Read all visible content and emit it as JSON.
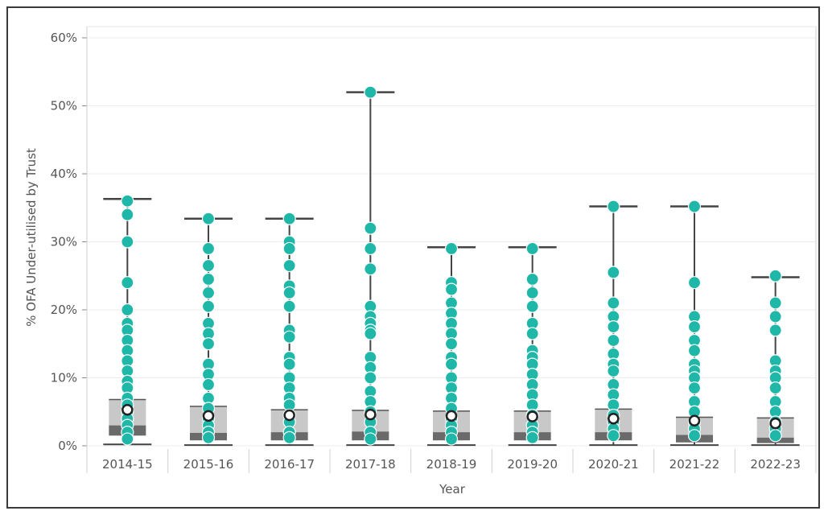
{
  "chart_data": {
    "type": "box",
    "xlabel": "Year",
    "ylabel": "% OFA Under-utilised by Trust",
    "ylim": [
      0,
      60
    ],
    "y_unit": "%",
    "y_ticks": [
      0,
      10,
      20,
      30,
      40,
      50,
      60
    ],
    "y_tick_labels": [
      "0%",
      "10%",
      "20%",
      "30%",
      "40%",
      "50%",
      "60%"
    ],
    "grid": true,
    "categories": [
      "2014-15",
      "2015-16",
      "2016-17",
      "2017-18",
      "2018-19",
      "2019-20",
      "2020-21",
      "2021-22",
      "2022-23"
    ],
    "boxes": [
      {
        "min": 0.2,
        "q1": 1.5,
        "median": 3.0,
        "q3": 6.8,
        "max": 36.3,
        "mean": 5.3
      },
      {
        "min": 0.1,
        "q1": 0.8,
        "median": 1.9,
        "q3": 5.8,
        "max": 33.4,
        "mean": 4.4
      },
      {
        "min": 0.1,
        "q1": 0.8,
        "median": 2.0,
        "q3": 5.3,
        "max": 33.4,
        "mean": 4.5
      },
      {
        "min": 0.1,
        "q1": 0.8,
        "median": 2.1,
        "q3": 5.2,
        "max": 52.0,
        "mean": 4.6
      },
      {
        "min": 0.1,
        "q1": 0.8,
        "median": 2.0,
        "q3": 5.1,
        "max": 29.2,
        "mean": 4.4
      },
      {
        "min": 0.1,
        "q1": 0.8,
        "median": 2.0,
        "q3": 5.1,
        "max": 29.2,
        "mean": 4.3
      },
      {
        "min": 0.1,
        "q1": 0.8,
        "median": 2.0,
        "q3": 5.4,
        "max": 35.2,
        "mean": 4.0
      },
      {
        "min": 0.1,
        "q1": 0.5,
        "median": 1.6,
        "q3": 4.2,
        "max": 35.2,
        "mean": 3.7
      },
      {
        "min": 0.1,
        "q1": 0.4,
        "median": 1.2,
        "q3": 4.1,
        "max": 24.8,
        "mean": 3.3
      }
    ],
    "points": [
      [
        36,
        34,
        30,
        24,
        20,
        18,
        17,
        15.5,
        14,
        12.5,
        11,
        9.5,
        8.5,
        7,
        6,
        5,
        4,
        3,
        2,
        1
      ],
      [
        33.4,
        29,
        26.5,
        24.5,
        22.5,
        20.5,
        18,
        16.5,
        15,
        12,
        10.5,
        9,
        7,
        5.5,
        4,
        3,
        2,
        1.2
      ],
      [
        33.4,
        30,
        29,
        26.5,
        23.5,
        22.5,
        20.5,
        17,
        16,
        13,
        12,
        10,
        8.5,
        7,
        6,
        4.5,
        3.5,
        2,
        1.2
      ],
      [
        52,
        32,
        29,
        26,
        20.5,
        19,
        18,
        17,
        16.5,
        13,
        11.5,
        10,
        8,
        6.5,
        5,
        3.5,
        2,
        1
      ],
      [
        29,
        24,
        23,
        21,
        19.5,
        18,
        16.5,
        15,
        13,
        12,
        10,
        8.5,
        7,
        5.5,
        4,
        3,
        2,
        1
      ],
      [
        29,
        24.5,
        22.5,
        20.5,
        18,
        16.5,
        14,
        13,
        12,
        10.5,
        9,
        7.5,
        6,
        4.5,
        3,
        2,
        1.2
      ],
      [
        35.2,
        25.5,
        21,
        19,
        17.5,
        15.5,
        13.5,
        12,
        11,
        9,
        7.5,
        6,
        4.5,
        3.5,
        2.5,
        1.5
      ],
      [
        35.2,
        24,
        19,
        17.5,
        15.5,
        14,
        12,
        11,
        10,
        8.5,
        6.5,
        5,
        3.5,
        2.5,
        1.5
      ],
      [
        25,
        21,
        19,
        17,
        12.5,
        11,
        10,
        8.5,
        6.5,
        5,
        3.5,
        2.5,
        1.5
      ]
    ],
    "colors": {
      "point": "#1fb8a8",
      "whisker": "#444444",
      "box_light": "#c8c8c8",
      "box_dark": "#6a6a6a",
      "mean_fill": "#ffffff",
      "mean_stroke": "#222222",
      "grid": "#ececec",
      "text": "#555555"
    }
  }
}
